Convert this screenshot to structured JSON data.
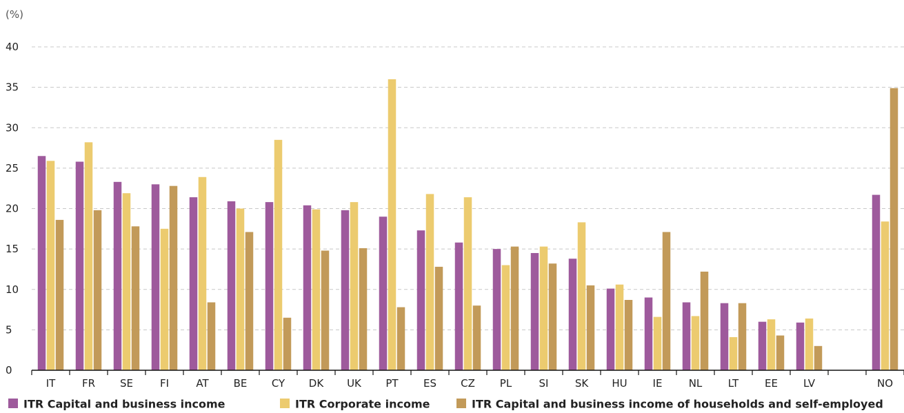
{
  "chart_data": {
    "type": "bar",
    "unit_label": "(%)",
    "ylim": [
      0,
      40
    ],
    "yticks": [
      0,
      5,
      10,
      15,
      20,
      25,
      30,
      35,
      40
    ],
    "grid": true,
    "legend_position": "bottom",
    "categories": [
      "IT",
      "FR",
      "SE",
      "FI",
      "AT",
      "BE",
      "CY",
      "DK",
      "UK",
      "PT",
      "ES",
      "CZ",
      "PL",
      "SI",
      "SK",
      "HU",
      "IE",
      "NL",
      "LT",
      "EE",
      "LV",
      "",
      "NO"
    ],
    "series": [
      {
        "name": "ITR Capital and business income",
        "color": "#9e5a9c",
        "values": [
          26.5,
          25.8,
          23.3,
          23.0,
          21.4,
          20.9,
          20.8,
          20.4,
          19.8,
          19.0,
          17.3,
          15.8,
          15.0,
          14.5,
          13.8,
          10.1,
          9.0,
          8.4,
          8.3,
          6.0,
          5.9,
          null,
          21.7
        ]
      },
      {
        "name": "ITR Corporate income",
        "color": "#eccb6f",
        "values": [
          25.9,
          28.2,
          21.9,
          17.5,
          23.9,
          20.0,
          28.5,
          19.9,
          20.8,
          36.0,
          21.8,
          21.4,
          13.0,
          15.3,
          18.3,
          10.6,
          6.6,
          6.7,
          4.1,
          6.3,
          6.4,
          null,
          18.4
        ]
      },
      {
        "name": "ITR Capital and business income of households and self-employed",
        "color": "#c29a59",
        "values": [
          18.6,
          19.8,
          17.8,
          22.8,
          8.4,
          17.1,
          6.5,
          14.8,
          15.1,
          7.8,
          12.8,
          8.0,
          15.3,
          13.2,
          10.5,
          8.7,
          17.1,
          12.2,
          8.3,
          4.3,
          3.0,
          null,
          34.9
        ]
      }
    ]
  }
}
